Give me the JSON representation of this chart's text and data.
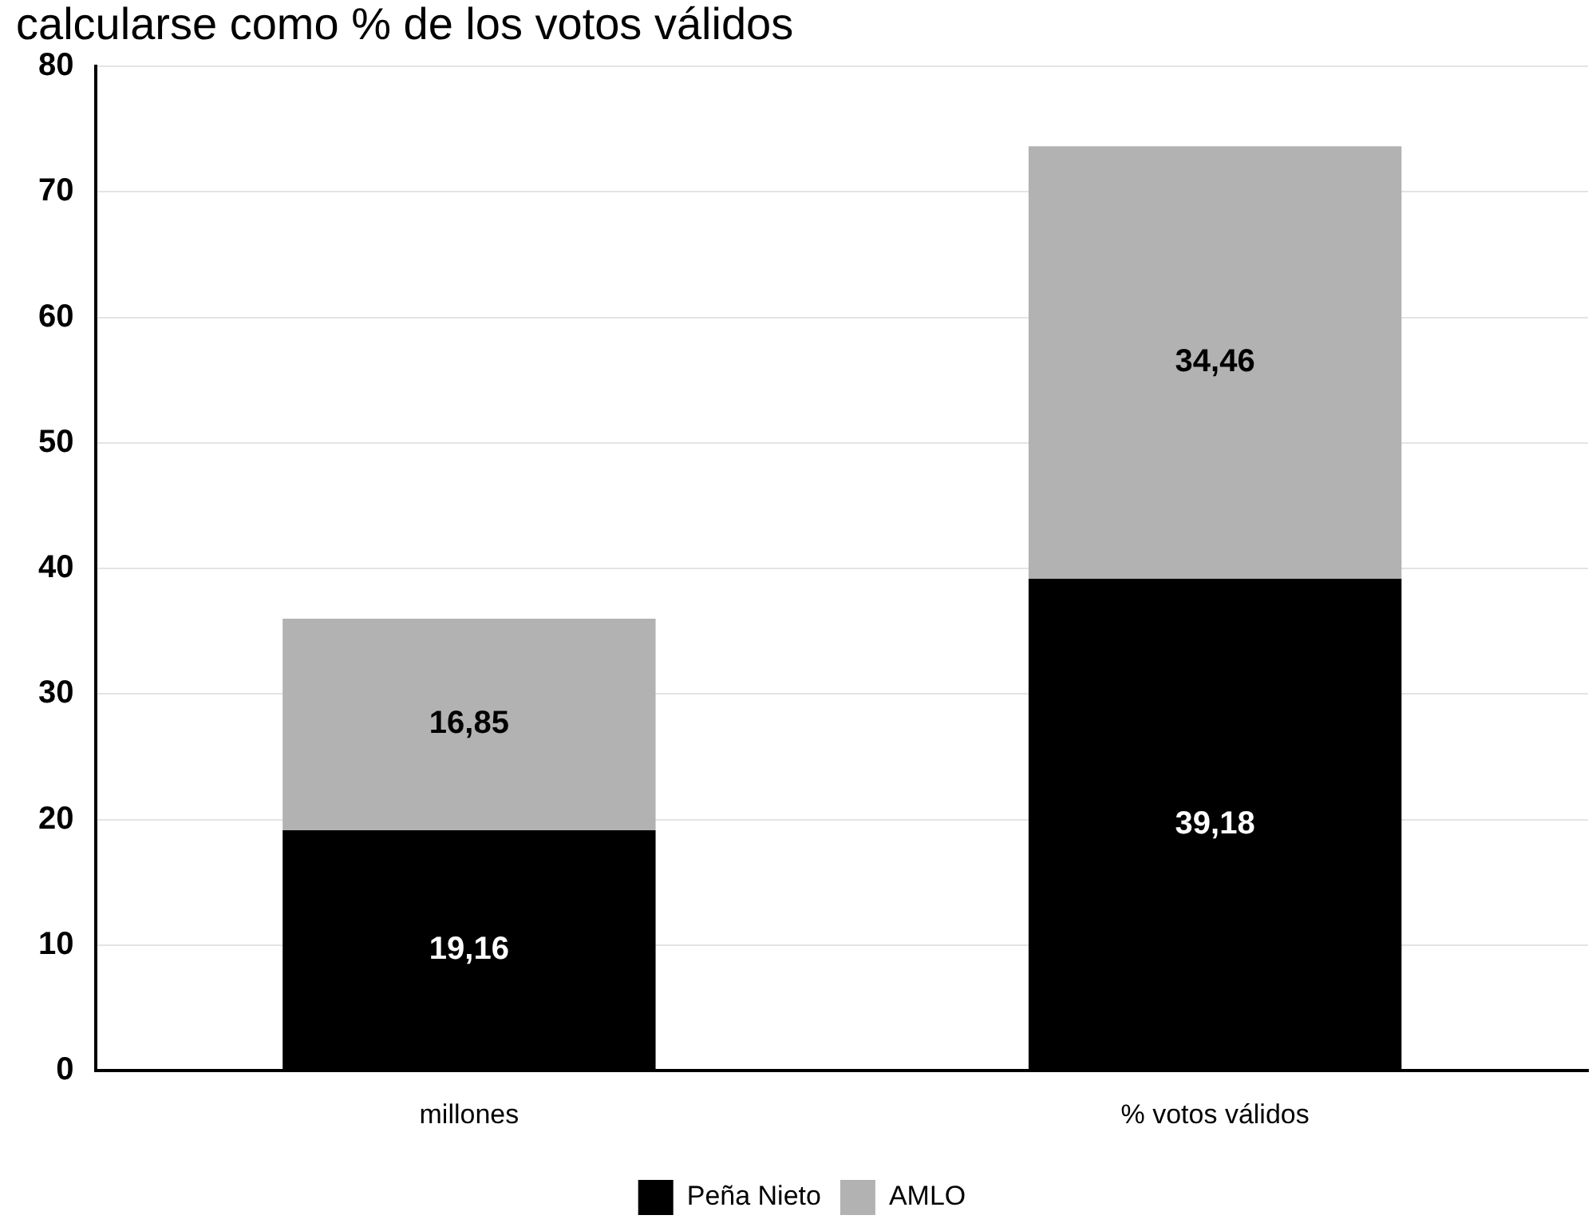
{
  "chart_data": {
    "type": "bar",
    "title": "calcularse como % de los votos válidos",
    "categories": [
      "millones",
      "% votos válidos"
    ],
    "stacked": true,
    "series": [
      {
        "name": "Peña Nieto",
        "color": "#000000",
        "values": [
          19.16,
          39.18
        ],
        "value_labels": [
          "19,16",
          "39,18"
        ]
      },
      {
        "name": "AMLO",
        "color": "#b2b2b2",
        "values": [
          16.85,
          34.46
        ],
        "value_labels": [
          "16,85",
          "34,46"
        ]
      }
    ],
    "ylim": [
      0,
      80
    ],
    "yticks": [
      0,
      10,
      20,
      30,
      40,
      50,
      60,
      70,
      80
    ],
    "grid": "y",
    "legend": "bottom"
  }
}
